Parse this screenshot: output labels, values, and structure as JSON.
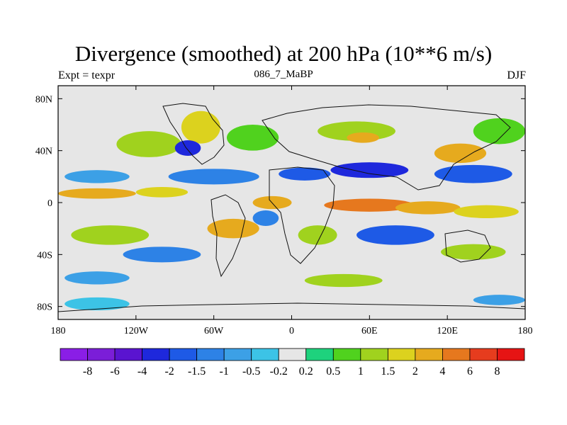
{
  "chart_data": {
    "type": "heatmap",
    "title": "Divergence (smoothed) at 200 hPa (10**6 m/s)",
    "left_label": "Expt = texpr",
    "center_label": "086_7_MaBP",
    "right_label": "DJF",
    "xlim": [
      -180,
      180
    ],
    "ylim": [
      -90,
      90
    ],
    "x_ticks": [
      {
        "value": -180,
        "label": "180"
      },
      {
        "value": -120,
        "label": "120W"
      },
      {
        "value": -60,
        "label": "60W"
      },
      {
        "value": 0,
        "label": "0"
      },
      {
        "value": 60,
        "label": "60E"
      },
      {
        "value": 120,
        "label": "120E"
      },
      {
        "value": 180,
        "label": "180"
      }
    ],
    "y_ticks": [
      {
        "value": 80,
        "label": "80N"
      },
      {
        "value": 40,
        "label": "40N"
      },
      {
        "value": 0,
        "label": "0"
      },
      {
        "value": -40,
        "label": "40S"
      },
      {
        "value": -80,
        "label": "80S"
      }
    ],
    "colorbar": {
      "levels": [
        "-8",
        "-6",
        "-4",
        "-2",
        "-1.5",
        "-1",
        "-0.5",
        "-0.2",
        "0.2",
        "0.5",
        "1",
        "1.5",
        "2",
        "4",
        "6",
        "8"
      ],
      "colors": [
        "#8a1ee6",
        "#7b1ed8",
        "#5a14d0",
        "#1e28dc",
        "#1e5ae6",
        "#2d82e6",
        "#3ca0e6",
        "#3cc3e6",
        "#e6e6e6",
        "#1ed27d",
        "#50d21e",
        "#a0d21e",
        "#dcd21e",
        "#e6aa1e",
        "#e6781e",
        "#e63c1e",
        "#e61414"
      ]
    },
    "regions": [
      {
        "lon": -150,
        "lat": 7,
        "width": 60,
        "height": 8,
        "value": 2
      },
      {
        "lon": -100,
        "lat": 8,
        "width": 40,
        "height": 8,
        "value": 1.5
      },
      {
        "lon": -150,
        "lat": 20,
        "width": 50,
        "height": 10,
        "value": -1
      },
      {
        "lon": -60,
        "lat": 20,
        "width": 70,
        "height": 12,
        "value": -1.5
      },
      {
        "lon": 10,
        "lat": 22,
        "width": 40,
        "height": 10,
        "value": -2
      },
      {
        "lon": 60,
        "lat": 25,
        "width": 60,
        "height": 12,
        "value": -4
      },
      {
        "lon": 140,
        "lat": 22,
        "width": 60,
        "height": 14,
        "value": -2
      },
      {
        "lon": -110,
        "lat": 45,
        "width": 50,
        "height": 20,
        "value": 1
      },
      {
        "lon": -70,
        "lat": 58,
        "width": 30,
        "height": 25,
        "value": 1.5
      },
      {
        "lon": -80,
        "lat": 42,
        "width": 20,
        "height": 12,
        "value": -4
      },
      {
        "lon": -30,
        "lat": 50,
        "width": 40,
        "height": 20,
        "value": 0.5
      },
      {
        "lon": 50,
        "lat": 55,
        "width": 60,
        "height": 15,
        "value": 1
      },
      {
        "lon": 55,
        "lat": 50,
        "width": 25,
        "height": 8,
        "value": 2
      },
      {
        "lon": 130,
        "lat": 38,
        "width": 40,
        "height": 15,
        "value": 2
      },
      {
        "lon": 160,
        "lat": 55,
        "width": 40,
        "height": 20,
        "value": 0.5
      },
      {
        "lon": 60,
        "lat": -2,
        "width": 70,
        "height": 10,
        "value": 4
      },
      {
        "lon": 105,
        "lat": -4,
        "width": 50,
        "height": 10,
        "value": 2
      },
      {
        "lon": 150,
        "lat": -7,
        "width": 50,
        "height": 10,
        "value": 1.5
      },
      {
        "lon": -15,
        "lat": 0,
        "width": 30,
        "height": 10,
        "value": 2
      },
      {
        "lon": -20,
        "lat": -12,
        "width": 20,
        "height": 12,
        "value": -1.5
      },
      {
        "lon": -140,
        "lat": -25,
        "width": 60,
        "height": 15,
        "value": 1
      },
      {
        "lon": -45,
        "lat": -20,
        "width": 40,
        "height": 15,
        "value": 2
      },
      {
        "lon": 20,
        "lat": -25,
        "width": 30,
        "height": 15,
        "value": 1
      },
      {
        "lon": 80,
        "lat": -25,
        "width": 60,
        "height": 15,
        "value": -2
      },
      {
        "lon": 140,
        "lat": -38,
        "width": 50,
        "height": 12,
        "value": 1
      },
      {
        "lon": -100,
        "lat": -40,
        "width": 60,
        "height": 12,
        "value": -1.5
      },
      {
        "lon": -150,
        "lat": -58,
        "width": 50,
        "height": 10,
        "value": -1
      },
      {
        "lon": 40,
        "lat": -60,
        "width": 60,
        "height": 10,
        "value": 1
      },
      {
        "lon": -150,
        "lat": -78,
        "width": 50,
        "height": 10,
        "value": -0.5
      },
      {
        "lon": 160,
        "lat": -75,
        "width": 40,
        "height": 8,
        "value": -1
      }
    ]
  }
}
